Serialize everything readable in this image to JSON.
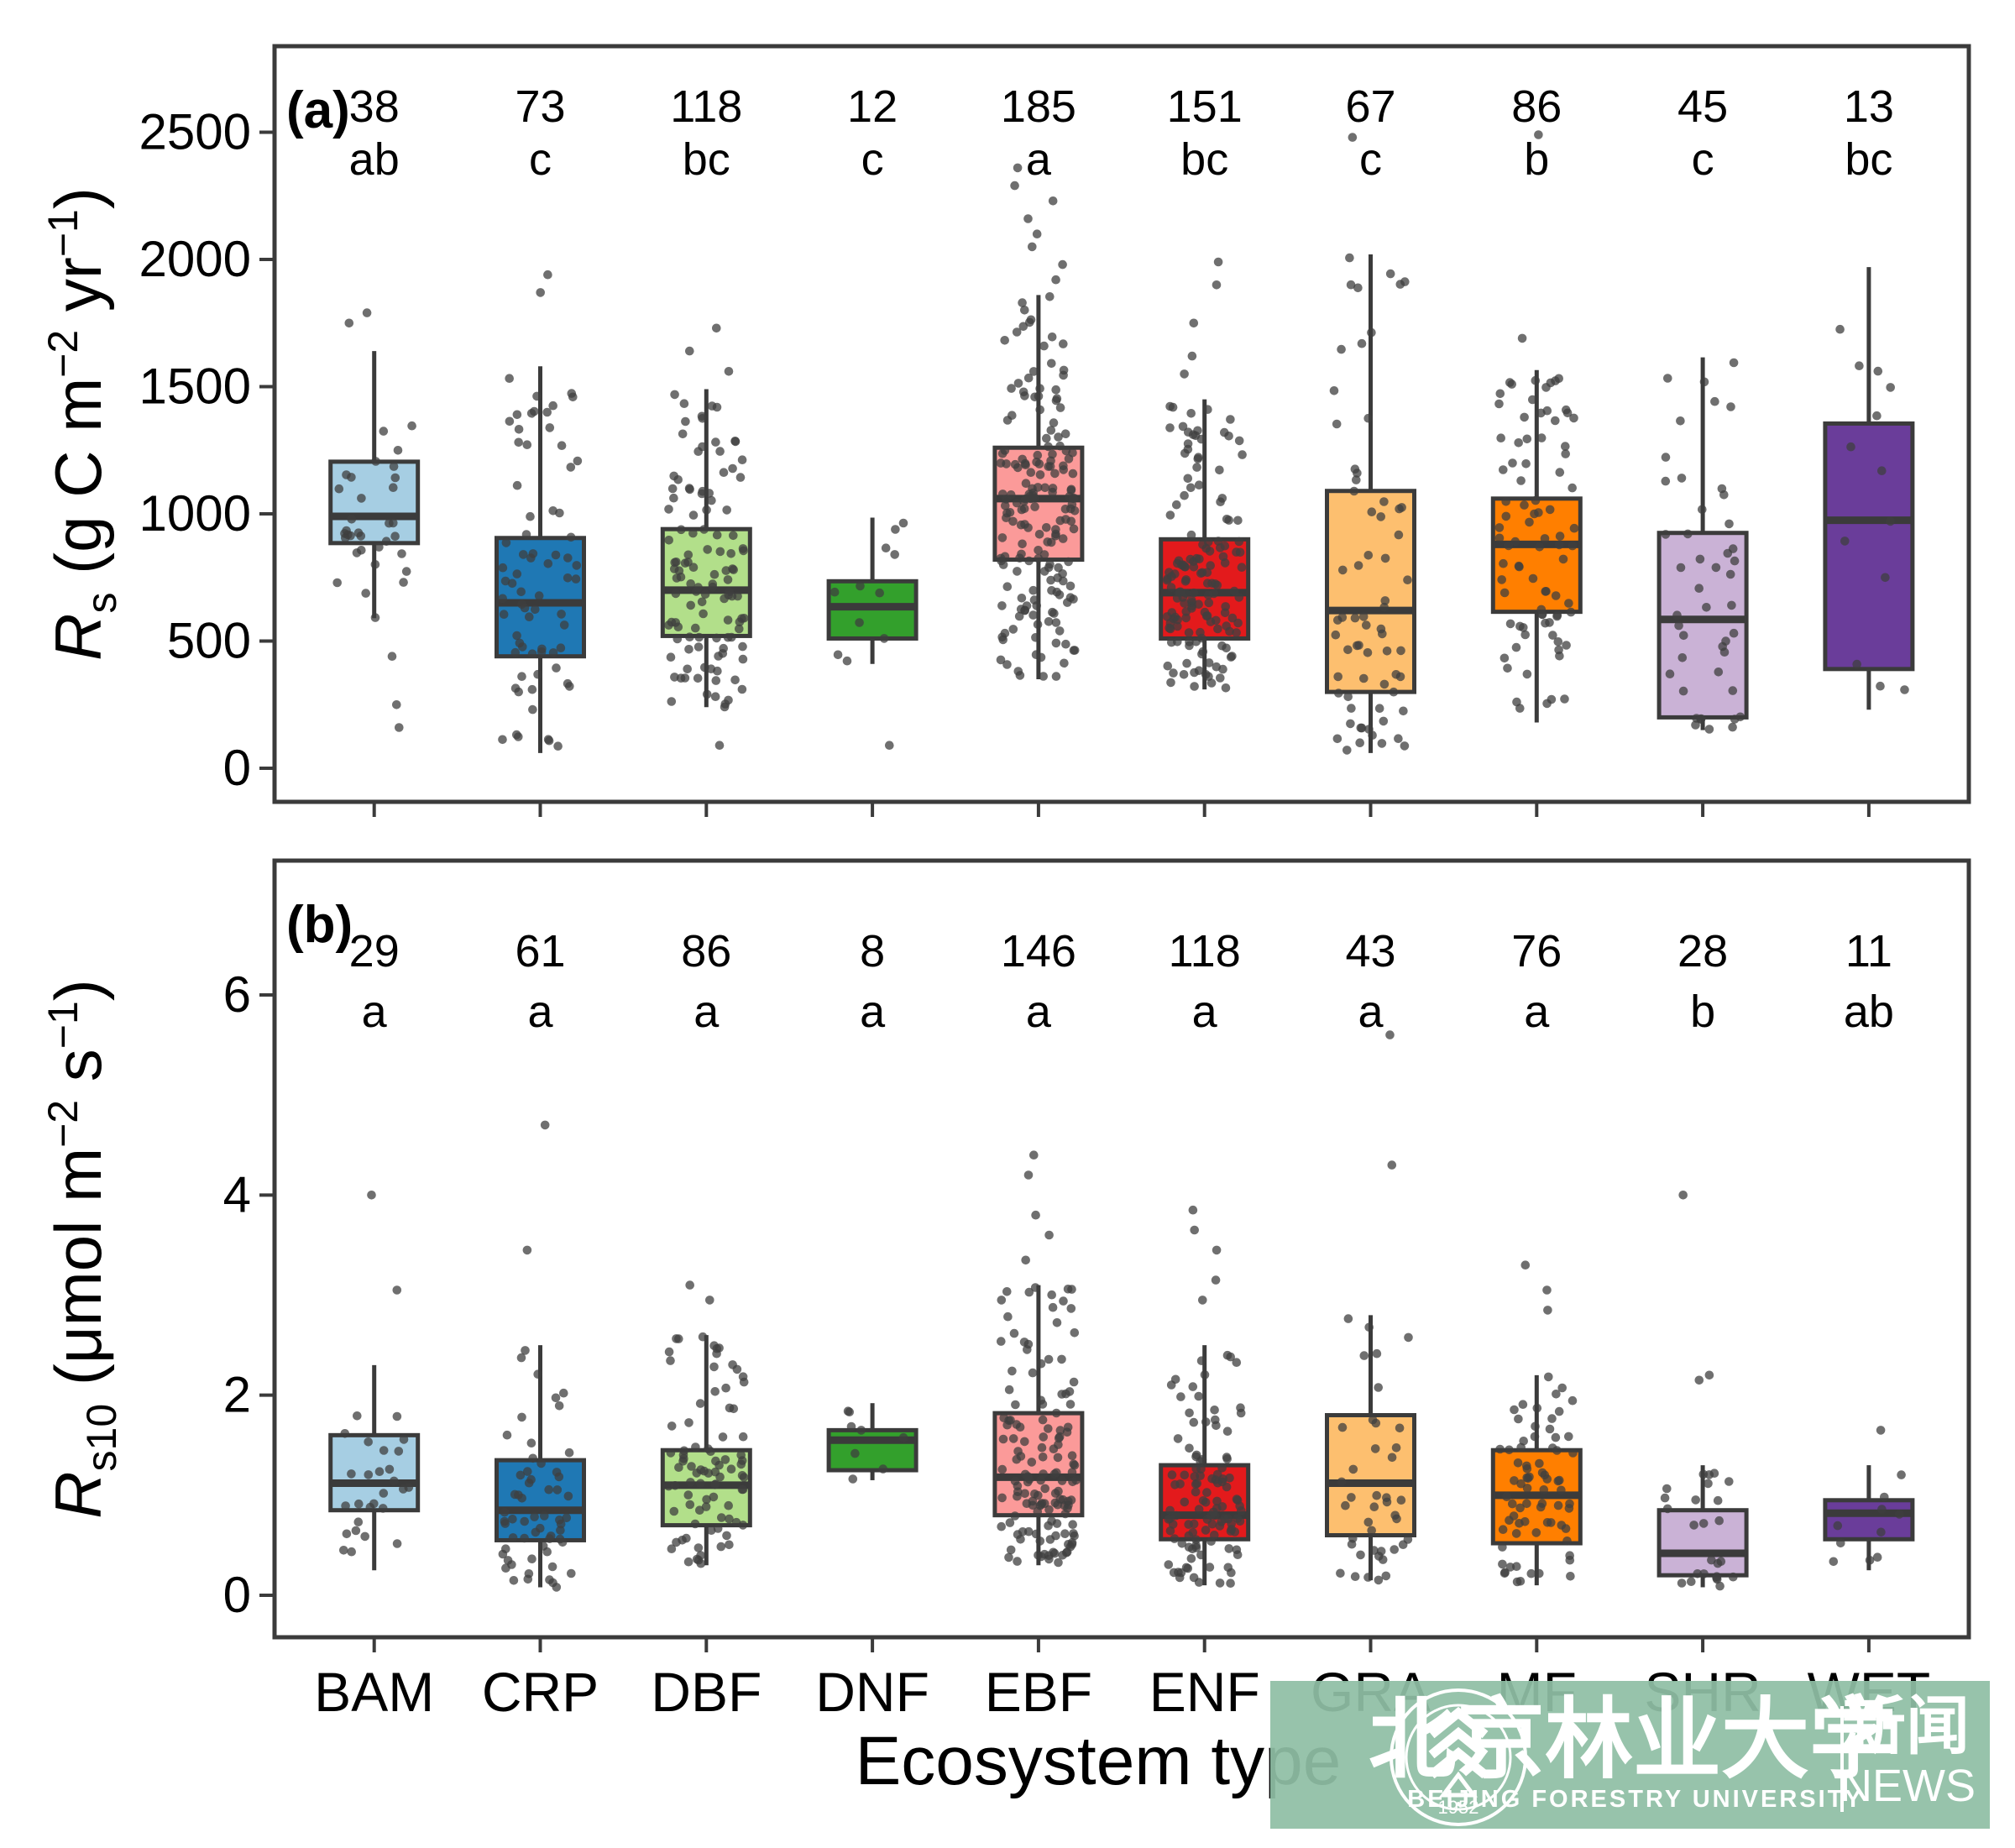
{
  "xlabel": "Ecosystem type",
  "watermark": {
    "bg_color": "#8fbea5",
    "cn_name": "北京林业大学",
    "en_name": "BEIJING FORESTRY UNIVERSITY",
    "news_cn": "新闻",
    "news_en": "NEWS",
    "seal_year": "1952",
    "text_color": "#ffffff"
  },
  "style": {
    "box_stroke": "#3b3b3b",
    "panel_stroke": "#3b3b3b",
    "point_color": "#3f3f3f",
    "point_opacity": 0.75,
    "text_color": "#000000"
  },
  "chart_data": [
    {
      "panel_tag": "(a)",
      "type": "box",
      "ylabel_plain": "Rs (g C m−2 yr−1)",
      "ylabel_segments": [
        {
          "t": "R",
          "i": true
        },
        {
          "t": "s",
          "sub": true
        },
        {
          "t": " (g C m"
        },
        {
          "t": "−2",
          "sup": true
        },
        {
          "t": " yr"
        },
        {
          "t": "−1",
          "sup": true
        },
        {
          "t": ")"
        }
      ],
      "yticks": [
        0,
        500,
        1000,
        1500,
        2000,
        2500
      ],
      "ylim": [
        -132,
        2838
      ],
      "grid": false,
      "legend": "none",
      "categories": [
        "BAM",
        "CRP",
        "DBF",
        "DNF",
        "EBF",
        "ENF",
        "GRA",
        "MF",
        "SHR",
        "WET"
      ],
      "colors": [
        "#A6CEE3",
        "#1F78B4",
        "#B2DF8A",
        "#33A02C",
        "#FB9A99",
        "#E31A1C",
        "#FDBF6F",
        "#FF7F00",
        "#CAB2D6",
        "#6A3D9A"
      ],
      "n": [
        38,
        73,
        118,
        12,
        185,
        151,
        67,
        86,
        45,
        13
      ],
      "letters": [
        "ab",
        "c",
        "bc",
        "c",
        "a",
        "bc",
        "c",
        "b",
        "c",
        "bc"
      ],
      "boxes": [
        {
          "whislo": 590,
          "q1": 885,
          "med": 990,
          "q3": 1205,
          "whishi": 1640,
          "out": [
            1790,
            1750,
            440,
            250,
            160
          ]
        },
        {
          "whislo": 60,
          "q1": 440,
          "med": 650,
          "q3": 905,
          "whishi": 1580,
          "out": [
            1940,
            1870
          ]
        },
        {
          "whislo": 240,
          "q1": 520,
          "med": 700,
          "q3": 940,
          "whishi": 1490,
          "out": [
            1730,
            1640,
            1560,
            90
          ]
        },
        {
          "whislo": 410,
          "q1": 510,
          "med": 635,
          "q3": 735,
          "whishi": 985,
          "out": [
            90
          ]
        },
        {
          "whislo": 350,
          "q1": 820,
          "med": 1060,
          "q3": 1260,
          "whishi": 1860,
          "out": [
            2360,
            2290,
            2230,
            2160,
            2100,
            2050,
            1980,
            1920
          ]
        },
        {
          "whislo": 310,
          "q1": 510,
          "med": 690,
          "q3": 900,
          "whishi": 1450,
          "out": [
            1990,
            1900,
            1750,
            1620,
            1550
          ]
        },
        {
          "whislo": 60,
          "q1": 300,
          "med": 620,
          "q3": 1090,
          "whishi": 2020,
          "out": [
            2480,
            100
          ]
        },
        {
          "whislo": 180,
          "q1": 615,
          "med": 880,
          "q3": 1060,
          "whishi": 1565,
          "out": [
            2490,
            1690
          ]
        },
        {
          "whislo": 150,
          "q1": 200,
          "med": 585,
          "q3": 925,
          "whishi": 1615,
          "out": []
        },
        {
          "whislo": 230,
          "q1": 390,
          "med": 975,
          "q3": 1355,
          "whishi": 1970,
          "out": []
        }
      ]
    },
    {
      "panel_tag": "(b)",
      "type": "box",
      "ylabel_plain": "Rs10 (μmol m−2 s−1)",
      "ylabel_segments": [
        {
          "t": "R",
          "i": true
        },
        {
          "t": "s10",
          "sub": true
        },
        {
          "t": " (μmol m"
        },
        {
          "t": "−2",
          "sup": true
        },
        {
          "t": " s"
        },
        {
          "t": "−1",
          "sup": true
        },
        {
          "t": ")"
        }
      ],
      "yticks": [
        0,
        2,
        4,
        6
      ],
      "ylim": [
        -0.42,
        7.34
      ],
      "grid": false,
      "legend": "none",
      "categories": [
        "BAM",
        "CRP",
        "DBF",
        "DNF",
        "EBF",
        "ENF",
        "GRA",
        "MF",
        "SHR",
        "WET"
      ],
      "colors": [
        "#A6CEE3",
        "#1F78B4",
        "#B2DF8A",
        "#33A02C",
        "#FB9A99",
        "#E31A1C",
        "#FDBF6F",
        "#FF7F00",
        "#CAB2D6",
        "#6A3D9A"
      ],
      "n": [
        29,
        61,
        86,
        8,
        146,
        118,
        43,
        76,
        28,
        11
      ],
      "letters": [
        "a",
        "a",
        "a",
        "a",
        "a",
        "a",
        "a",
        "a",
        "b",
        "ab"
      ],
      "boxes": [
        {
          "whislo": 0.25,
          "q1": 0.85,
          "med": 1.12,
          "q3": 1.6,
          "whishi": 2.3,
          "out": [
            4.0,
            3.05
          ]
        },
        {
          "whislo": 0.08,
          "q1": 0.55,
          "med": 0.85,
          "q3": 1.35,
          "whishi": 2.5,
          "out": [
            4.7,
            3.45
          ]
        },
        {
          "whislo": 0.3,
          "q1": 0.7,
          "med": 1.1,
          "q3": 1.45,
          "whishi": 2.6,
          "out": [
            3.1,
            2.95
          ]
        },
        {
          "whislo": 1.15,
          "q1": 1.25,
          "med": 1.55,
          "q3": 1.65,
          "whishi": 1.92,
          "out": []
        },
        {
          "whislo": 0.3,
          "q1": 0.8,
          "med": 1.18,
          "q3": 1.82,
          "whishi": 3.1,
          "out": [
            4.4,
            4.2,
            3.8,
            3.6,
            3.35
          ]
        },
        {
          "whislo": 0.1,
          "q1": 0.56,
          "med": 0.8,
          "q3": 1.3,
          "whishi": 2.5,
          "out": [
            3.85,
            3.65,
            3.45,
            3.15,
            2.95
          ]
        },
        {
          "whislo": 0.15,
          "q1": 0.6,
          "med": 1.12,
          "q3": 1.8,
          "whishi": 2.8,
          "out": [
            5.6,
            4.3
          ]
        },
        {
          "whislo": 0.1,
          "q1": 0.52,
          "med": 1.0,
          "q3": 1.45,
          "whishi": 2.2,
          "out": [
            3.3,
            3.05,
            2.85
          ]
        },
        {
          "whislo": 0.08,
          "q1": 0.2,
          "med": 0.42,
          "q3": 0.85,
          "whishi": 1.3,
          "out": [
            4.0,
            2.2,
            2.15
          ]
        },
        {
          "whislo": 0.25,
          "q1": 0.56,
          "med": 0.82,
          "q3": 0.95,
          "whishi": 1.3,
          "out": [
            1.65
          ]
        }
      ]
    }
  ]
}
